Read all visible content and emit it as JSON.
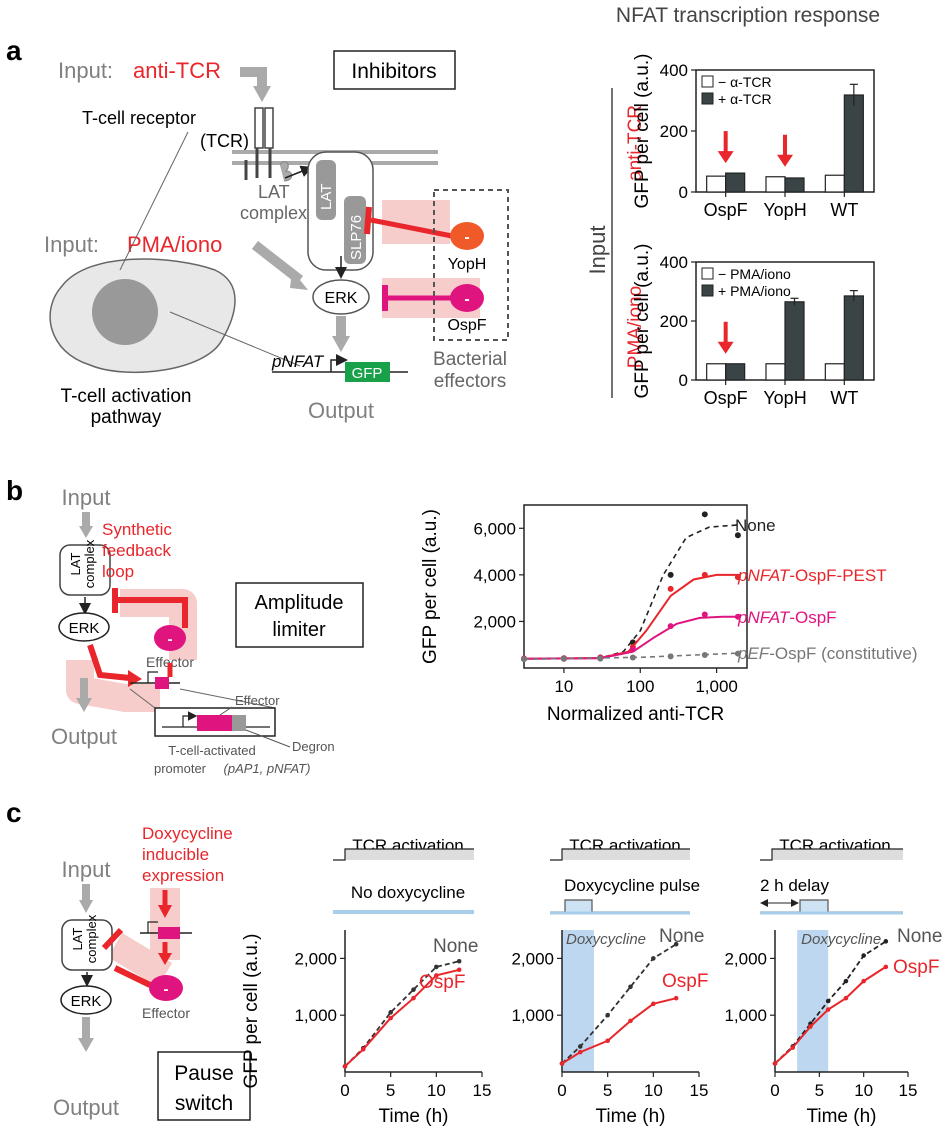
{
  "colors": {
    "red": "#e8262b",
    "magenta": "#e0147f",
    "gray": "#a5a5a5",
    "dark": "#3a4446",
    "blue": "#bcd7ef",
    "pink": "#f7cdcc"
  },
  "panel_a": {
    "label": "a",
    "input_prefix": "Input:",
    "input_anti_tcr": "anti-TCR",
    "input_pma": "PMA/iono",
    "tcr_line1": "T-cell receptor",
    "tcr_line2": "(TCR)",
    "lat_line1": "LAT",
    "lat_line2": "complex",
    "lat_vertical": "LAT",
    "slp76": "SLP76",
    "erk": "ERK",
    "yoph": "YopH",
    "ospf": "OspF",
    "inhibitors": "Inhibitors",
    "bact_line1": "Bacterial",
    "bact_line2": "effectors",
    "tcell_line1": "T-cell activation",
    "tcell_line2": "pathway",
    "pnfat": "pNFAT",
    "gfp": "GFP",
    "output": "Output",
    "minus": "-",
    "chart_title": "NFAT transcription response",
    "input_side": "Input",
    "row1_side": "anti-TCR",
    "row2_side": "PMA/iono"
  },
  "panel_b": {
    "label": "b",
    "input": "Input",
    "output": "Output",
    "lat": "LAT complex",
    "erk": "ERK",
    "synth_line1": "Synthetic",
    "synth_line2": "feedback",
    "synth_line3": "loop",
    "box_line1": "Amplitude",
    "box_line2": "limiter",
    "effector": "Effector",
    "effector2": "Effector",
    "degron": "Degron",
    "tcellact": "T-cell-activated",
    "promoter": "promoter",
    "promoter_paren": "(pAP1, pNFAT)",
    "minus": "-"
  },
  "panel_c": {
    "label": "c",
    "input": "Input",
    "output": "Output",
    "lat": "LAT complex",
    "erk": "ERK",
    "dox_line1": "Doxycycline",
    "dox_line2": "inducible",
    "dox_line3": "expression",
    "effector": "Effector",
    "box_line1": "Pause",
    "box_line2": "switch",
    "tcr_activation": "TCR activation",
    "no_dox": "No doxycycline",
    "dox_pulse": "Doxycycline pulse",
    "delay": "2 h delay",
    "dox_italic": "Doxycycline",
    "minus": "-"
  },
  "chart_data": [
    {
      "id": "a1",
      "type": "bar",
      "categories": [
        "OspF",
        "YopH",
        "WT"
      ],
      "series": [
        {
          "name": "− α-TCR",
          "values": [
            52,
            50,
            55
          ]
        },
        {
          "name": "+ α-TCR",
          "values": [
            62,
            46,
            318
          ]
        }
      ],
      "errors": [
        0,
        0,
        35
      ],
      "ylabel": "GFP per cell (a.u.)",
      "ylim": [
        0,
        400
      ],
      "yticks": [
        0,
        200,
        400
      ],
      "arrows_over": [
        "OspF",
        "YopH"
      ],
      "legend": "top-left"
    },
    {
      "id": "a2",
      "type": "bar",
      "categories": [
        "OspF",
        "YopH",
        "WT"
      ],
      "series": [
        {
          "name": "− PMA/iono",
          "values": [
            55,
            55,
            55
          ]
        },
        {
          "name": "+ PMA/iono",
          "values": [
            55,
            265,
            285
          ]
        }
      ],
      "errors": [
        0,
        12,
        18
      ],
      "ylabel": "GFP per cell (a.u.)",
      "ylim": [
        0,
        400
      ],
      "yticks": [
        0,
        200,
        400
      ],
      "arrows_over": [
        "OspF"
      ],
      "legend": "top-left"
    },
    {
      "id": "b",
      "type": "line",
      "xscale": "log",
      "xlabel": "Normalized anti-TCR",
      "ylabel": "GFP per cell (a.u.)",
      "xlim": [
        3,
        2500
      ],
      "ylim": [
        0,
        7000
      ],
      "xticks": [
        10,
        100,
        1000
      ],
      "xtick_labels": [
        "10",
        "100",
        "1,000"
      ],
      "yticks": [
        2000,
        4000,
        6000
      ],
      "ytick_labels": [
        "2,000",
        "4,000",
        "6,000"
      ],
      "series": [
        {
          "name": "None",
          "color": "#222222",
          "dashed": true,
          "x": [
            3,
            10,
            30,
            80,
            250,
            700,
            1900
          ],
          "y": [
            400,
            420,
            450,
            1100,
            4000,
            6600,
            5700
          ],
          "fit": [
            [
              3,
              400
            ],
            [
              30,
              430
            ],
            [
              60,
              700
            ],
            [
              100,
              1600
            ],
            [
              200,
              4000
            ],
            [
              400,
              5600
            ],
            [
              800,
              6050
            ],
            [
              2000,
              6150
            ]
          ]
        },
        {
          "name": "pNFAT-OspF-PEST",
          "color": "#e8262b",
          "dashed": false,
          "x": [
            3,
            10,
            30,
            80,
            250,
            700,
            1900
          ],
          "y": [
            400,
            410,
            440,
            900,
            3400,
            4000,
            3900
          ],
          "fit": [
            [
              3,
              400
            ],
            [
              30,
              430
            ],
            [
              70,
              700
            ],
            [
              120,
              1600
            ],
            [
              250,
              3100
            ],
            [
              500,
              3800
            ],
            [
              1000,
              4000
            ],
            [
              2000,
              4000
            ]
          ]
        },
        {
          "name": "pNFAT-OspF",
          "color": "#e0147f",
          "dashed": false,
          "x": [
            3,
            10,
            30,
            80,
            250,
            700,
            1900
          ],
          "y": [
            400,
            410,
            430,
            800,
            1800,
            2300,
            2200
          ],
          "fit": [
            [
              3,
              400
            ],
            [
              30,
              420
            ],
            [
              80,
              700
            ],
            [
              150,
              1300
            ],
            [
              300,
              1900
            ],
            [
              600,
              2150
            ],
            [
              1200,
              2200
            ],
            [
              2000,
              2200
            ]
          ]
        },
        {
          "name": "pEF-OspF (constitutive)",
          "color": "#777777",
          "dashed": true,
          "x": [
            3,
            10,
            30,
            80,
            250,
            700,
            1900
          ],
          "y": [
            380,
            390,
            400,
            450,
            500,
            560,
            620
          ],
          "fit": [
            [
              3,
              380
            ],
            [
              100,
              460
            ],
            [
              2000,
              640
            ]
          ]
        }
      ],
      "series_labels": [
        {
          "prefix": "",
          "name": "None",
          "suffix": ""
        },
        {
          "prefix": "pNFAT",
          "name": "-OspF-PEST",
          "suffix": ""
        },
        {
          "prefix": "pNFAT",
          "name": "-OspF",
          "suffix": ""
        },
        {
          "prefix": "pEF",
          "name": "-OspF",
          "suffix": " (constitutive)"
        }
      ]
    },
    {
      "id": "c1",
      "type": "line",
      "xlabel": "Time (h)",
      "ylabel": "GFP per cell (a.u.)",
      "xlim": [
        0,
        15
      ],
      "ylim": [
        0,
        2500
      ],
      "xticks": [
        0,
        5,
        10,
        15
      ],
      "yticks": [
        1000,
        2000
      ],
      "ytick_labels": [
        "1,000",
        "2,000"
      ],
      "series": [
        {
          "name": "None",
          "color": "#333333",
          "dashed": true,
          "x": [
            0,
            2,
            5,
            7.5,
            10,
            12.5
          ],
          "y": [
            100,
            420,
            1050,
            1450,
            1850,
            1950
          ]
        },
        {
          "name": "OspF",
          "color": "#e8262b",
          "dashed": false,
          "x": [
            0,
            2,
            5,
            7.5,
            10,
            12.5
          ],
          "y": [
            100,
            400,
            950,
            1300,
            1700,
            1800
          ]
        }
      ]
    },
    {
      "id": "c2",
      "type": "line",
      "xlabel": "Time (h)",
      "ylabel": "",
      "xlim": [
        0,
        15
      ],
      "ylim": [
        0,
        2500
      ],
      "xticks": [
        0,
        5,
        10,
        15
      ],
      "yticks": [
        1000,
        2000
      ],
      "ytick_labels": [
        "1,000",
        "2,000"
      ],
      "shade": [
        0,
        3.5
      ],
      "series": [
        {
          "name": "None",
          "color": "#333333",
          "dashed": true,
          "x": [
            0,
            2,
            5,
            7.5,
            10,
            12.5
          ],
          "y": [
            150,
            450,
            1000,
            1500,
            2000,
            2250
          ]
        },
        {
          "name": "OspF",
          "color": "#e8262b",
          "dashed": false,
          "x": [
            0,
            2,
            5,
            7.5,
            10,
            12.5
          ],
          "y": [
            150,
            350,
            550,
            900,
            1200,
            1300
          ]
        }
      ]
    },
    {
      "id": "c3",
      "type": "line",
      "xlabel": "Time (h)",
      "ylabel": "",
      "xlim": [
        0,
        15
      ],
      "ylim": [
        0,
        2500
      ],
      "xticks": [
        0,
        5,
        10,
        15
      ],
      "yticks": [
        1000,
        2000
      ],
      "ytick_labels": [
        "1,000",
        "2,000"
      ],
      "shade": [
        2.5,
        6
      ],
      "series": [
        {
          "name": "None",
          "color": "#222222",
          "dashed": true,
          "x": [
            0,
            2,
            4,
            6,
            8,
            10,
            12.5
          ],
          "y": [
            150,
            450,
            850,
            1250,
            1600,
            2050,
            2300
          ]
        },
        {
          "name": "OspF",
          "color": "#e8262b",
          "dashed": false,
          "x": [
            0,
            2,
            4,
            6,
            8,
            10,
            12.5
          ],
          "y": [
            150,
            430,
            800,
            1100,
            1300,
            1600,
            1850
          ]
        }
      ]
    }
  ]
}
